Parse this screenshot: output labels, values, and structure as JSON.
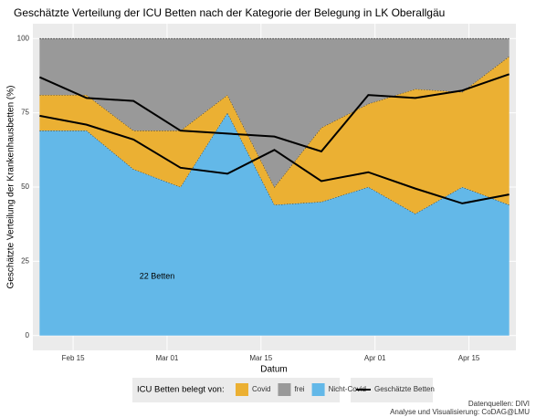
{
  "chart_data": {
    "type": "stacked_area",
    "title": "Geschätzte Verteilung der ICU Betten nach der Kategorie der Belegung in LK Oberallgäu",
    "x_label": "Datum",
    "y_label": "Geschätzte Verteilung der Krankenhausbetten (%)",
    "x": [
      "Feb 10",
      "Feb 17",
      "Feb 24",
      "Mar 03",
      "Mar 10",
      "Mar 17",
      "Mar 24",
      "Mar 31",
      "Apr 07",
      "Apr 14",
      "Apr 21"
    ],
    "xlim": [
      "Feb 09",
      "Apr 22"
    ],
    "xticks": [
      "Feb 15",
      "Mar 01",
      "Mar 15",
      "Apr 01",
      "Apr 15"
    ],
    "ylim": [
      -5,
      105
    ],
    "yticks": [
      0,
      25,
      50,
      75,
      100
    ],
    "grid": true,
    "series": [
      {
        "name": "Nicht-Covid",
        "color": "#63b8e8",
        "values": [
          69,
          69,
          56,
          50,
          75,
          44,
          45,
          50,
          41,
          50,
          44
        ]
      },
      {
        "name": "Covid",
        "color": "#ebb033",
        "values": [
          12,
          12,
          13,
          19,
          6,
          6,
          25,
          28,
          42,
          32,
          50
        ]
      },
      {
        "name": "frei",
        "color": "#999999",
        "values": [
          19,
          19,
          31,
          31,
          19,
          50,
          30,
          22,
          17,
          18,
          6
        ]
      }
    ],
    "legend_title": "ICU Betten belegt von:",
    "line_legend": "Geschätzte Betten",
    "line_color": "#000000",
    "lines": [
      {
        "values": [
          87,
          80,
          79,
          69,
          68,
          67,
          62,
          81,
          80,
          82.5,
          88
        ]
      },
      {
        "values": [
          74,
          71,
          66,
          56.5,
          54.5,
          62.5,
          52,
          55,
          49.5,
          44.5,
          47.5
        ]
      }
    ],
    "annotation": "22 Betten",
    "caption": [
      "Datenquellen: DIVI",
      "Analyse und Visualisierung: CoDAG@LMU"
    ]
  }
}
